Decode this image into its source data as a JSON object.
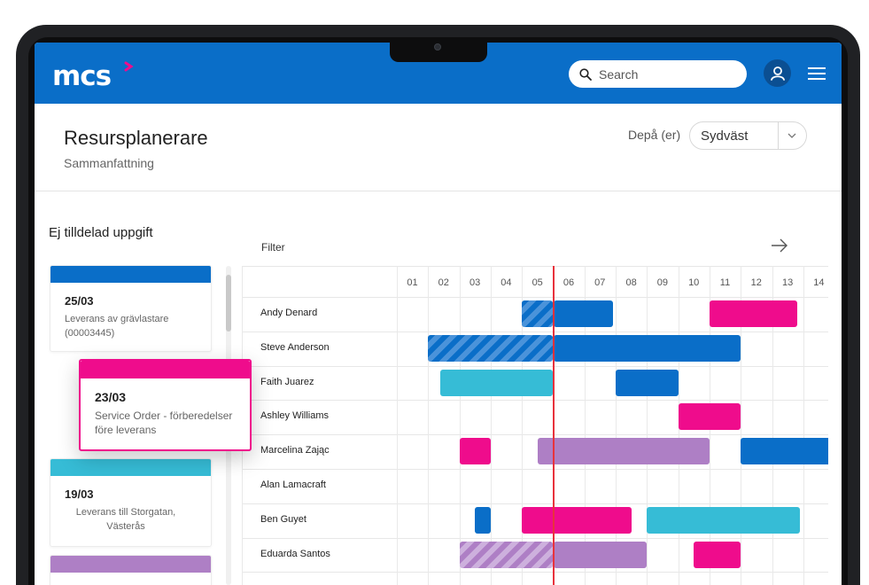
{
  "header": {
    "logo": "mcs",
    "search_placeholder": "Search",
    "brand_color": "#0a6ec8",
    "accent_color": "#ef0c8c"
  },
  "page": {
    "title": "Resursplanerare",
    "subtitle": "Sammanfattning",
    "depot_label": "Depå (er)",
    "depot_value": "Sydväst"
  },
  "unassigned": {
    "title": "Ej tilldelad uppgift",
    "cards": [
      {
        "date": "25/03",
        "desc": "Leverans av grävlastare (00003445)",
        "color": "#0a6ec8"
      },
      {
        "date": "23/03",
        "desc": "Service Order - förberedelser före leverans",
        "color": "#ef0c8c",
        "dragging": true
      },
      {
        "date": "19/03",
        "desc": "Leverans till Storgatan, Västerås",
        "color": "#36bcd6"
      },
      {
        "date": "",
        "desc": "",
        "color": "#ae7fc5"
      }
    ]
  },
  "gantt": {
    "filter_label": "Filter",
    "days": [
      "01",
      "02",
      "03",
      "04",
      "05",
      "06",
      "07",
      "08",
      "09",
      "10",
      "11",
      "12",
      "13",
      "14"
    ],
    "now_day": 5,
    "resources": [
      {
        "name": "Andy Denard",
        "bars": [
          {
            "start": 5,
            "end": 6,
            "color": "#0a6ec8",
            "style": "hatched-blue"
          },
          {
            "start": 6,
            "end": 7.9,
            "color": "#0a6ec8"
          },
          {
            "start": 11,
            "end": 13.8,
            "color": "#ef0c8c"
          }
        ]
      },
      {
        "name": "Steve Anderson",
        "bars": [
          {
            "start": 2,
            "end": 6,
            "color": "#0a6ec8",
            "style": "hatched-blue"
          },
          {
            "start": 6,
            "end": 12,
            "color": "#0a6ec8"
          }
        ]
      },
      {
        "name": "Faith Juarez",
        "bars": [
          {
            "start": 2.4,
            "end": 6,
            "color": "#36bcd6"
          },
          {
            "start": 8,
            "end": 10,
            "color": "#0a6ec8"
          }
        ]
      },
      {
        "name": "Ashley Williams",
        "bars": [
          {
            "start": 10,
            "end": 12,
            "color": "#ef0c8c"
          }
        ]
      },
      {
        "name": "Marcelina Zając",
        "bars": [
          {
            "start": 3,
            "end": 4,
            "color": "#ef0c8c"
          },
          {
            "start": 5.5,
            "end": 11,
            "color": "#ae7fc5"
          },
          {
            "start": 12,
            "end": 15,
            "color": "#0a6ec8"
          }
        ]
      },
      {
        "name": "Alan Lamacraft",
        "bars": []
      },
      {
        "name": "Ben Guyet",
        "bars": [
          {
            "start": 3.5,
            "end": 4,
            "color": "#0a6ec8"
          },
          {
            "start": 5,
            "end": 8.5,
            "color": "#ef0c8c"
          },
          {
            "start": 9,
            "end": 13.9,
            "color": "#36bcd6"
          }
        ]
      },
      {
        "name": "Eduarda Santos",
        "bars": [
          {
            "start": 3,
            "end": 6,
            "color": "#ae7fc5",
            "style": "hatched-purple"
          },
          {
            "start": 6,
            "end": 9,
            "color": "#ae7fc5"
          },
          {
            "start": 10.5,
            "end": 12,
            "color": "#ef0c8c"
          }
        ]
      }
    ]
  }
}
